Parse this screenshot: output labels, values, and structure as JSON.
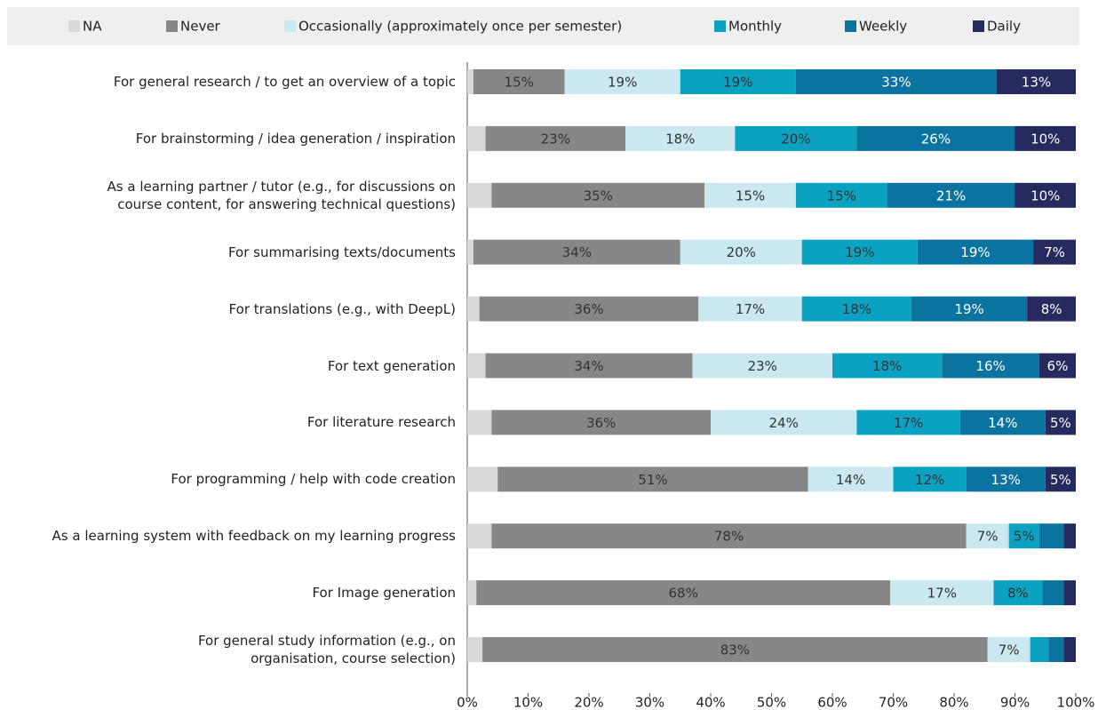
{
  "chart_data": {
    "type": "stacked-barh",
    "categories": [
      "For general research / to get an overview of a topic",
      "For brainstorming / idea generation / inspiration",
      "As a learning partner / tutor (e.g., for discussions on\ncourse content, for answering technical questions)",
      "For summarising texts/documents",
      "For translations (e.g., with DeepL)",
      "For text generation",
      "For literature research",
      "For programming / help with code creation",
      "As a learning system with feedback on my learning progress",
      "For Image generation",
      "For general study information (e.g., on\norganisation, course selection)"
    ],
    "series": [
      {
        "name": "NA",
        "color": "#d9d9d9",
        "values": [
          1,
          3,
          4,
          1,
          2,
          3,
          4,
          5,
          4,
          1.5,
          2.5
        ],
        "value_labels": [
          null,
          null,
          null,
          null,
          null,
          null,
          null,
          null,
          null,
          null,
          null
        ]
      },
      {
        "name": "Never",
        "color": "#878787",
        "values": [
          15,
          23,
          35,
          34,
          36,
          34,
          36,
          51,
          78,
          68,
          83
        ],
        "value_labels": [
          "15%",
          "23%",
          "35%",
          "34%",
          "36%",
          "34%",
          "36%",
          "51%",
          "78%",
          "68%",
          "83%"
        ]
      },
      {
        "name": "Occasionally (approximately once per semester)",
        "color": "#c9e8ef",
        "values": [
          19,
          18,
          15,
          20,
          17,
          23,
          24,
          14,
          7,
          17,
          7
        ],
        "value_labels": [
          "19%",
          "18%",
          "15%",
          "20%",
          "17%",
          "23%",
          "24%",
          "14%",
          "7%",
          "17%",
          "7%"
        ]
      },
      {
        "name": "Monthly",
        "color": "#0aa2c0",
        "values": [
          19,
          20,
          15,
          19,
          18,
          18,
          17,
          12,
          5,
          8,
          3
        ],
        "value_labels": [
          "19%",
          "20%",
          "15%",
          "19%",
          "18%",
          "18%",
          "17%",
          "12%",
          "5%",
          "8%",
          null
        ]
      },
      {
        "name": "Weekly",
        "color": "#0a73a0",
        "values": [
          33,
          26,
          21,
          19,
          19,
          16,
          14,
          13,
          4,
          3.5,
          2.5
        ],
        "value_labels": [
          "33%",
          "26%",
          "21%",
          "19%",
          "19%",
          "16%",
          "14%",
          "13%",
          null,
          null,
          null
        ]
      },
      {
        "name": "Daily",
        "color": "#262a5e",
        "values": [
          13,
          10,
          10,
          7,
          8,
          6,
          5,
          5,
          2,
          2,
          2
        ],
        "value_labels": [
          "13%",
          "10%",
          "10%",
          "7%",
          "8%",
          "6%",
          "5%",
          "5%",
          null,
          null,
          null
        ]
      }
    ],
    "xlim": [
      0,
      100
    ],
    "xticks": [
      {
        "value": 0,
        "label": "0%"
      },
      {
        "value": 10,
        "label": "10%"
      },
      {
        "value": 20,
        "label": "20%"
      },
      {
        "value": 30,
        "label": "30%"
      },
      {
        "value": 40,
        "label": "40%"
      },
      {
        "value": 50,
        "label": "50%"
      },
      {
        "value": 60,
        "label": "60%"
      },
      {
        "value": 70,
        "label": "70%"
      },
      {
        "value": 80,
        "label": "80%"
      },
      {
        "value": 90,
        "label": "90%"
      },
      {
        "value": 100,
        "label": "100%"
      }
    ],
    "legend": "top"
  }
}
